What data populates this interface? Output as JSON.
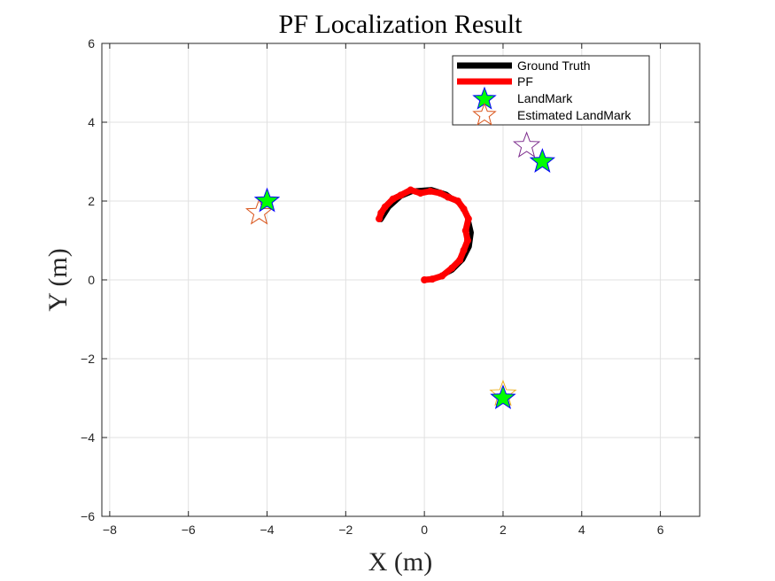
{
  "chart_data": {
    "type": "line",
    "title": "PF Localization Result",
    "xlabel": "X (m)",
    "ylabel": "Y (m)",
    "xlim": [
      -8.2,
      7
    ],
    "ylim": [
      -6,
      6
    ],
    "xticks": [
      -8,
      -6,
      -4,
      -2,
      0,
      2,
      4,
      6
    ],
    "yticks": [
      -6,
      -4,
      -2,
      0,
      2,
      4,
      6
    ],
    "grid": true,
    "legend_position": "top-right",
    "legend": [
      "Ground Truth",
      "PF",
      "LandMark",
      "Estimated LandMark"
    ],
    "colors": {
      "ground_truth": "#000000",
      "pf": "#ff0000",
      "landmark_fill": "#00ff00",
      "landmark_edge": "#0000ff",
      "estimated_edges": [
        "#d95319",
        "#7e2f8e",
        "#edb120"
      ]
    },
    "series": [
      {
        "name": "Ground Truth",
        "x": [
          0.0,
          0.37,
          0.71,
          0.98,
          1.15,
          1.2,
          1.11,
          0.89,
          0.56,
          0.18,
          -0.22,
          -0.6,
          -0.9,
          -1.1
        ],
        "y": [
          0.0,
          0.06,
          0.24,
          0.51,
          0.84,
          1.2,
          1.59,
          1.93,
          2.18,
          2.3,
          2.27,
          2.11,
          1.84,
          1.52
        ]
      },
      {
        "name": "PF",
        "x": [
          0.0,
          0.2,
          0.45,
          0.7,
          0.9,
          1.0,
          1.1,
          1.05,
          1.12,
          1.0,
          0.85,
          0.6,
          0.4,
          0.15,
          -0.1,
          -0.35,
          -0.6,
          -0.8,
          -1.0,
          -1.1,
          -1.15
        ],
        "y": [
          0.0,
          0.02,
          0.1,
          0.3,
          0.5,
          0.75,
          1.0,
          1.25,
          1.55,
          1.8,
          2.0,
          2.1,
          2.2,
          2.25,
          2.2,
          2.28,
          2.15,
          2.05,
          1.85,
          1.7,
          1.55
        ]
      }
    ],
    "landmarks": [
      {
        "x": -4.0,
        "y": 2.0
      },
      {
        "x": 3.0,
        "y": 3.0
      },
      {
        "x": 2.0,
        "y": -3.0
      }
    ],
    "estimated_landmarks": [
      {
        "x": -4.2,
        "y": 1.7
      },
      {
        "x": 2.6,
        "y": 3.4
      },
      {
        "x": 2.0,
        "y": -2.9
      }
    ]
  }
}
